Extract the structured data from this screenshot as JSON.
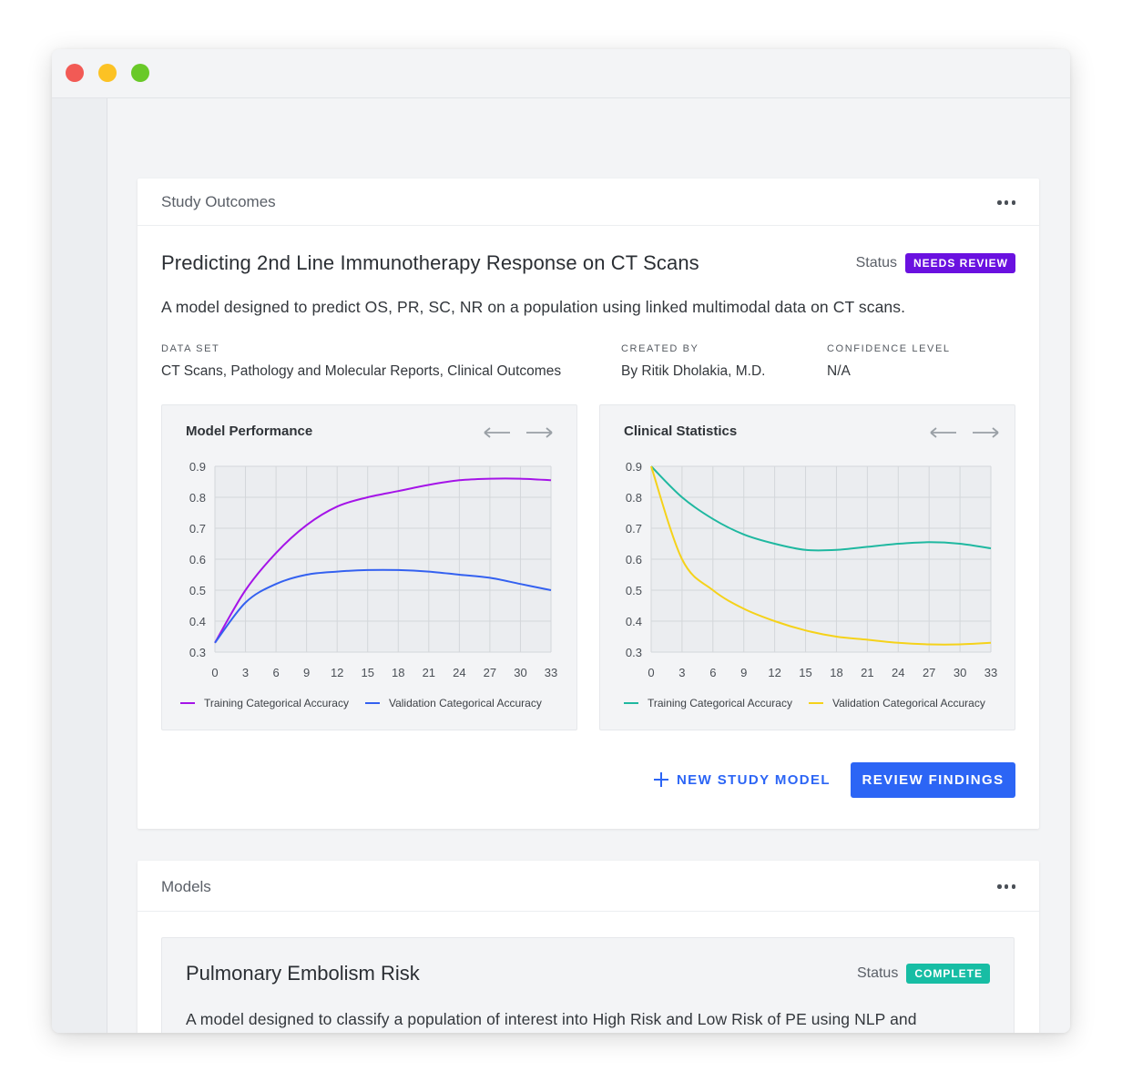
{
  "window": {
    "controls": [
      "close",
      "minimize",
      "maximize"
    ]
  },
  "study_card": {
    "header_title": "Study Outcomes",
    "more_icon": "more-horizontal-icon",
    "title": "Predicting 2nd Line Immunotherapy Response on CT Scans",
    "status_label": "Status",
    "status_badge": "NEEDS REVIEW",
    "status_color": "#6a11e0",
    "description": "A model designed to predict OS, PR, SC, NR on a population using linked multimodal data on CT scans.",
    "meta": {
      "data_set_label": "DATA SET",
      "data_set_value": "CT Scans, Pathology and Molecular Reports, Clinical Outcomes",
      "created_by_label": "CREATED BY",
      "created_by_value": "By Ritik Dholakia, M.D.",
      "confidence_label": "CONFIDENCE LEVEL",
      "confidence_value": "N/A"
    },
    "new_model_button": "NEW STUDY MODEL",
    "review_button": "REVIEW FINDINGS",
    "accent_color": "#2c65f5"
  },
  "models_card": {
    "header_title": "Models",
    "model": {
      "title": "Pulmonary Embolism Risk",
      "status_label": "Status",
      "status_badge": "COMPLETE",
      "status_color": "#17bda4",
      "description": "A model designed to classify a population of interest into High Risk and Low Risk of PE using NLP and Predictive analytics from EMR data and unstructured clinical notes"
    }
  },
  "chart_data": [
    {
      "type": "line",
      "title": "Model Performance",
      "xlabel": "",
      "ylabel": "",
      "x_ticks": [
        0,
        3,
        6,
        9,
        12,
        15,
        18,
        21,
        24,
        27,
        30,
        33
      ],
      "y_ticks": [
        0.3,
        0.4,
        0.5,
        0.6,
        0.7,
        0.8,
        0.9
      ],
      "xlim": [
        0,
        33
      ],
      "ylim": [
        0.3,
        0.9
      ],
      "grid": true,
      "legend_position": "bottom",
      "x": [
        0,
        3,
        6,
        9,
        12,
        15,
        18,
        21,
        24,
        27,
        30,
        33
      ],
      "series": [
        {
          "name": "Training Categorical Accuracy",
          "color": "#a514e8",
          "values": [
            0.33,
            0.5,
            0.62,
            0.71,
            0.77,
            0.8,
            0.82,
            0.84,
            0.855,
            0.86,
            0.86,
            0.855
          ]
        },
        {
          "name": "Validation Categorical Accuracy",
          "color": "#3461f0",
          "values": [
            0.33,
            0.46,
            0.52,
            0.55,
            0.56,
            0.565,
            0.565,
            0.56,
            0.55,
            0.54,
            0.52,
            0.5
          ]
        }
      ]
    },
    {
      "type": "line",
      "title": "Clinical Statistics",
      "xlabel": "",
      "ylabel": "",
      "x_ticks": [
        0,
        3,
        6,
        9,
        12,
        15,
        18,
        21,
        24,
        27,
        30,
        33
      ],
      "y_ticks": [
        0.3,
        0.4,
        0.5,
        0.6,
        0.7,
        0.8,
        0.9
      ],
      "xlim": [
        0,
        33
      ],
      "ylim": [
        0.3,
        0.9
      ],
      "grid": true,
      "legend_position": "bottom",
      "x": [
        0,
        3,
        6,
        9,
        12,
        15,
        18,
        21,
        24,
        27,
        30,
        33
      ],
      "series": [
        {
          "name": "Training Categorical Accuracy",
          "color": "#1fb8a0",
          "values": [
            0.9,
            0.8,
            0.73,
            0.68,
            0.65,
            0.63,
            0.63,
            0.64,
            0.65,
            0.655,
            0.65,
            0.635
          ]
        },
        {
          "name": "Validation Categorical Accuracy",
          "color": "#f5d21a",
          "values": [
            0.9,
            0.6,
            0.5,
            0.44,
            0.4,
            0.37,
            0.35,
            0.34,
            0.33,
            0.325,
            0.325,
            0.33
          ]
        }
      ]
    }
  ]
}
